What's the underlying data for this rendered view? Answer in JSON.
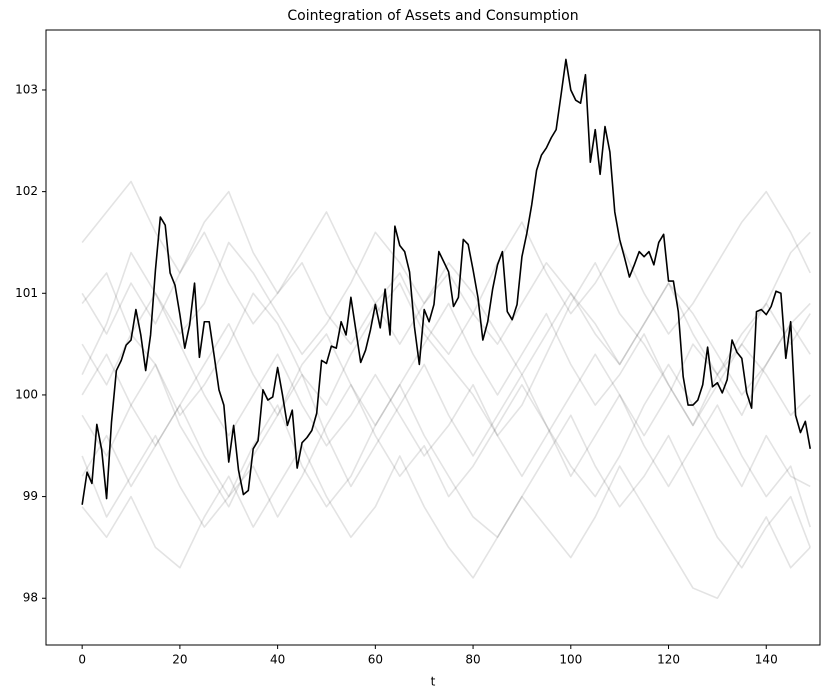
{
  "chart_data": {
    "type": "line",
    "title": "Cointegration of Assets and Consumption",
    "x_label": "t",
    "xlim": [
      -7.4,
      151
    ],
    "xticks": [
      0,
      20,
      40,
      60,
      80,
      100,
      120,
      140
    ],
    "ylim": [
      97.54,
      103.59
    ],
    "yticks": [
      98,
      99,
      100,
      101,
      102,
      103
    ],
    "grid": false,
    "series": [
      {
        "color": "#000000",
        "alpha": 0.11,
        "x": [
          0,
          5,
          10,
          15,
          20,
          25,
          30,
          35,
          40,
          45,
          50,
          55,
          60,
          65,
          70,
          75,
          80,
          85,
          90,
          95,
          100,
          105,
          110,
          115,
          120,
          125,
          130,
          135,
          140,
          145,
          149
        ],
        "values": [
          100.9,
          101.2,
          100.6,
          100.3,
          99.8,
          100.1,
          100.5,
          101.0,
          100.7,
          100.2,
          99.9,
          100.4,
          100.8,
          101.1,
          100.6,
          100.3,
          100.0,
          99.6,
          99.9,
          100.4,
          100.9,
          101.3,
          100.8,
          100.5,
          100.1,
          99.7,
          100.2,
          100.6,
          100.9,
          101.4,
          101.6
        ]
      },
      {
        "color": "#000000",
        "alpha": 0.11,
        "x": [
          0,
          5,
          10,
          15,
          20,
          25,
          30,
          35,
          40,
          45,
          50,
          55,
          60,
          65,
          70,
          75,
          80,
          85,
          90,
          95,
          100,
          105,
          110,
          115,
          120,
          125,
          130,
          135,
          140,
          145,
          149
        ],
        "values": [
          99.4,
          98.8,
          99.2,
          99.6,
          99.1,
          98.7,
          99.0,
          99.5,
          99.9,
          99.3,
          98.9,
          99.2,
          99.7,
          100.1,
          99.6,
          99.2,
          98.8,
          98.6,
          99.0,
          99.4,
          99.8,
          99.3,
          98.9,
          99.2,
          99.6,
          99.1,
          98.6,
          98.3,
          98.7,
          99.0,
          98.5
        ]
      },
      {
        "color": "#000000",
        "alpha": 0.11,
        "x": [
          0,
          5,
          10,
          15,
          20,
          25,
          30,
          35,
          40,
          45,
          50,
          55,
          60,
          65,
          70,
          75,
          80,
          85,
          90,
          95,
          100,
          105,
          110,
          115,
          120,
          125,
          130,
          135,
          140,
          145,
          149
        ],
        "values": [
          100.2,
          100.7,
          101.4,
          101.0,
          100.6,
          100.9,
          101.5,
          101.2,
          100.8,
          100.4,
          100.7,
          101.1,
          101.6,
          101.3,
          100.9,
          101.2,
          100.8,
          100.5,
          100.9,
          101.3,
          101.0,
          100.6,
          100.3,
          100.7,
          101.1,
          100.8,
          100.4,
          100.0,
          100.3,
          100.7,
          100.9
        ]
      },
      {
        "color": "#000000",
        "alpha": 0.11,
        "x": [
          0,
          5,
          10,
          15,
          20,
          25,
          30,
          35,
          40,
          45,
          50,
          55,
          60,
          65,
          70,
          75,
          80,
          85,
          90,
          95,
          100,
          105,
          110,
          115,
          120,
          125,
          130,
          135,
          140,
          145,
          149
        ],
        "values": [
          99.8,
          99.4,
          99.9,
          100.3,
          99.7,
          99.3,
          98.9,
          99.4,
          99.8,
          100.2,
          99.6,
          99.1,
          99.5,
          99.9,
          100.3,
          99.8,
          99.4,
          99.8,
          100.2,
          99.7,
          99.3,
          99.0,
          99.4,
          99.9,
          100.3,
          99.9,
          99.5,
          99.1,
          99.6,
          99.2,
          99.1
        ]
      },
      {
        "color": "#000000",
        "alpha": 0.11,
        "x": [
          0,
          5,
          10,
          15,
          20,
          25,
          30,
          35,
          40,
          45,
          50,
          55,
          60,
          65,
          70,
          75,
          80,
          85,
          90,
          95,
          100,
          105,
          110,
          115,
          120,
          125,
          130,
          135,
          140,
          145,
          149
        ],
        "values": [
          101.5,
          101.8,
          102.1,
          101.6,
          101.2,
          101.7,
          102.0,
          101.4,
          101.0,
          101.3,
          100.8,
          100.5,
          100.9,
          101.2,
          100.7,
          100.4,
          100.8,
          101.3,
          101.7,
          101.2,
          100.8,
          101.1,
          101.5,
          101.0,
          100.6,
          100.9,
          101.3,
          101.7,
          102.0,
          101.6,
          101.2
        ]
      },
      {
        "color": "#000000",
        "alpha": 0.11,
        "x": [
          0,
          5,
          10,
          15,
          20,
          25,
          30,
          35,
          40,
          45,
          50,
          55,
          60,
          65,
          70,
          75,
          80,
          85,
          90,
          95,
          100,
          105,
          110,
          115,
          120,
          125,
          130,
          135,
          140,
          145,
          149
        ],
        "values": [
          98.9,
          98.6,
          99.0,
          98.5,
          98.3,
          98.8,
          99.2,
          98.7,
          99.1,
          99.5,
          99.0,
          98.6,
          98.9,
          99.4,
          98.9,
          98.5,
          98.2,
          98.6,
          99.0,
          98.7,
          98.4,
          98.8,
          99.3,
          98.9,
          98.5,
          98.1,
          98.0,
          98.4,
          98.8,
          98.3,
          98.5
        ]
      },
      {
        "color": "#000000",
        "alpha": 0.11,
        "x": [
          0,
          5,
          10,
          15,
          20,
          25,
          30,
          35,
          40,
          45,
          50,
          55,
          60,
          65,
          70,
          75,
          80,
          85,
          90,
          95,
          100,
          105,
          110,
          115,
          120,
          125,
          130,
          135,
          140,
          145,
          149
        ],
        "values": [
          100.0,
          100.4,
          99.9,
          99.5,
          99.9,
          100.3,
          100.7,
          100.2,
          99.8,
          100.3,
          100.6,
          100.1,
          99.7,
          100.1,
          100.5,
          100.9,
          100.4,
          100.0,
          100.4,
          100.8,
          100.3,
          99.9,
          100.2,
          100.6,
          100.1,
          99.7,
          100.1,
          100.5,
          100.2,
          99.8,
          100.0
        ]
      },
      {
        "color": "#000000",
        "alpha": 0.11,
        "x": [
          0,
          5,
          10,
          15,
          20,
          25,
          30,
          35,
          40,
          45,
          50,
          55,
          60,
          65,
          70,
          75,
          80,
          85,
          90,
          95,
          100,
          105,
          110,
          115,
          120,
          125,
          130,
          135,
          140,
          145,
          149
        ],
        "values": [
          100.5,
          100.1,
          100.6,
          101.0,
          100.5,
          100.0,
          99.6,
          100.0,
          100.4,
          99.9,
          99.5,
          99.8,
          100.2,
          99.8,
          99.4,
          99.7,
          100.1,
          99.6,
          99.2,
          99.6,
          100.0,
          100.4,
          100.0,
          99.6,
          100.0,
          100.5,
          100.2,
          99.8,
          100.3,
          100.7,
          100.4
        ]
      },
      {
        "color": "#000000",
        "alpha": 0.11,
        "x": [
          0,
          5,
          10,
          15,
          20,
          25,
          30,
          35,
          40,
          45,
          50,
          55,
          60,
          65,
          70,
          75,
          80,
          85,
          90,
          95,
          100,
          105,
          110,
          115,
          120,
          125,
          130,
          135,
          140,
          145,
          149
        ],
        "values": [
          99.2,
          99.6,
          99.1,
          99.5,
          99.9,
          99.4,
          99.0,
          99.3,
          98.8,
          99.2,
          99.7,
          100.1,
          99.6,
          99.2,
          99.5,
          99.0,
          99.3,
          99.7,
          100.1,
          99.7,
          99.2,
          99.6,
          100.0,
          99.5,
          99.1,
          99.5,
          99.9,
          99.4,
          99.0,
          99.3,
          98.7
        ]
      },
      {
        "color": "#000000",
        "alpha": 0.11,
        "x": [
          0,
          5,
          10,
          15,
          20,
          25,
          30,
          35,
          40,
          45,
          50,
          55,
          60,
          65,
          70,
          75,
          80,
          85,
          90,
          95,
          100,
          105,
          110,
          115,
          120,
          125,
          130,
          135,
          140,
          145,
          149
        ],
        "values": [
          101.0,
          100.6,
          101.1,
          100.7,
          101.2,
          101.6,
          101.1,
          100.7,
          101.0,
          101.4,
          101.8,
          101.3,
          100.9,
          100.5,
          100.9,
          101.3,
          101.0,
          100.6,
          100.2,
          100.6,
          101.0,
          100.7,
          100.3,
          100.7,
          101.1,
          100.6,
          100.2,
          100.5,
          100.9,
          100.5,
          100.8
        ]
      },
      {
        "color": "#000000",
        "alpha": 1,
        "x": [
          0,
          1,
          2,
          3,
          4,
          5,
          6,
          7,
          8,
          9,
          10,
          11,
          12,
          13,
          14,
          15,
          16,
          17,
          18,
          19,
          20,
          21,
          22,
          23,
          24,
          25,
          26,
          27,
          28,
          29,
          30,
          31,
          32,
          33,
          34,
          35,
          36,
          37,
          38,
          39,
          40,
          41,
          42,
          43,
          44,
          45,
          46,
          47,
          48,
          49,
          50,
          51,
          52,
          53,
          54,
          55,
          56,
          57,
          58,
          59,
          60,
          61,
          62,
          63,
          64,
          65,
          66,
          67,
          68,
          69,
          70,
          71,
          72,
          73,
          74,
          75,
          76,
          77,
          78,
          79,
          80,
          81,
          82,
          83,
          84,
          85,
          86,
          87,
          88,
          89,
          90,
          91,
          92,
          93,
          94,
          95,
          96,
          97,
          98,
          99,
          100,
          101,
          102,
          103,
          104,
          105,
          106,
          107,
          108,
          109,
          110,
          111,
          112,
          113,
          114,
          115,
          116,
          117,
          118,
          119,
          120,
          121,
          122,
          123,
          124,
          125,
          126,
          127,
          128,
          129,
          130,
          131,
          132,
          133,
          134,
          135,
          136,
          137,
          138,
          139,
          140,
          141,
          142,
          143,
          144,
          145,
          146,
          147,
          148,
          149
        ],
        "values": [
          98.92,
          99.24,
          99.13,
          99.71,
          99.46,
          98.98,
          99.73,
          100.24,
          100.34,
          100.49,
          100.54,
          100.84,
          100.59,
          100.24,
          100.59,
          101.23,
          101.75,
          101.67,
          101.2,
          101.08,
          100.79,
          100.46,
          100.69,
          101.1,
          100.37,
          100.72,
          100.72,
          100.39,
          100.05,
          99.9,
          99.34,
          99.7,
          99.26,
          99.02,
          99.06,
          99.47,
          99.55,
          100.05,
          99.95,
          99.98,
          100.27,
          100.0,
          99.7,
          99.85,
          99.28,
          99.53,
          99.58,
          99.65,
          99.82,
          100.34,
          100.31,
          100.48,
          100.46,
          100.72,
          100.59,
          100.96,
          100.64,
          100.32,
          100.44,
          100.64,
          100.89,
          100.66,
          101.04,
          100.59,
          101.66,
          101.47,
          101.41,
          101.21,
          100.67,
          100.3,
          100.84,
          100.72,
          100.89,
          101.41,
          101.31,
          101.21,
          100.87,
          100.96,
          101.53,
          101.48,
          101.23,
          100.96,
          100.54,
          100.72,
          101.04,
          101.28,
          101.41,
          100.82,
          100.74,
          100.89,
          101.36,
          101.59,
          101.87,
          102.21,
          102.36,
          102.43,
          102.53,
          102.61,
          102.95,
          103.3,
          103.0,
          102.9,
          102.87,
          103.15,
          102.29,
          102.61,
          102.17,
          102.64,
          102.39,
          101.8,
          101.53,
          101.35,
          101.16,
          101.28,
          101.41,
          101.36,
          101.41,
          101.28,
          101.5,
          101.58,
          101.12,
          101.12,
          100.82,
          100.18,
          99.9,
          99.9,
          99.95,
          100.1,
          100.47,
          100.08,
          100.12,
          100.02,
          100.15,
          100.54,
          100.42,
          100.36,
          100.02,
          99.87,
          100.82,
          100.84,
          100.79,
          100.87,
          101.02,
          101.0,
          100.36,
          100.72,
          99.8,
          99.63,
          99.74,
          99.47
        ]
      }
    ]
  }
}
